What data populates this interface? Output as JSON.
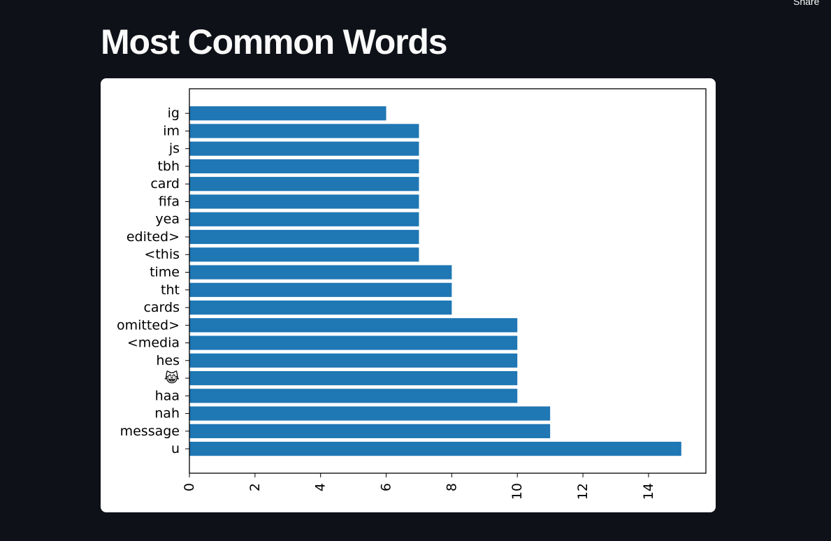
{
  "header": {
    "share_label": "Share",
    "title": "Most Common Words"
  },
  "chart_data": {
    "type": "bar",
    "orientation": "horizontal",
    "categories": [
      "u",
      "message",
      "nah",
      "haa",
      "😹",
      "hes",
      "<media",
      "omitted>",
      "cards",
      "tht",
      "time",
      "<this",
      "edited>",
      "yea",
      "fifa",
      "card",
      "tbh",
      "js",
      "im",
      "ig"
    ],
    "values": [
      15,
      11,
      11,
      10,
      10,
      10,
      10,
      10,
      8,
      8,
      8,
      7,
      7,
      7,
      7,
      7,
      7,
      7,
      7,
      6
    ],
    "xticks": [
      0,
      2,
      4,
      6,
      8,
      10,
      12,
      14
    ],
    "xlim": [
      0,
      15.75
    ],
    "title": "",
    "xlabel": "",
    "ylabel": "",
    "grid": false,
    "bar_color": "#1f77b4"
  }
}
